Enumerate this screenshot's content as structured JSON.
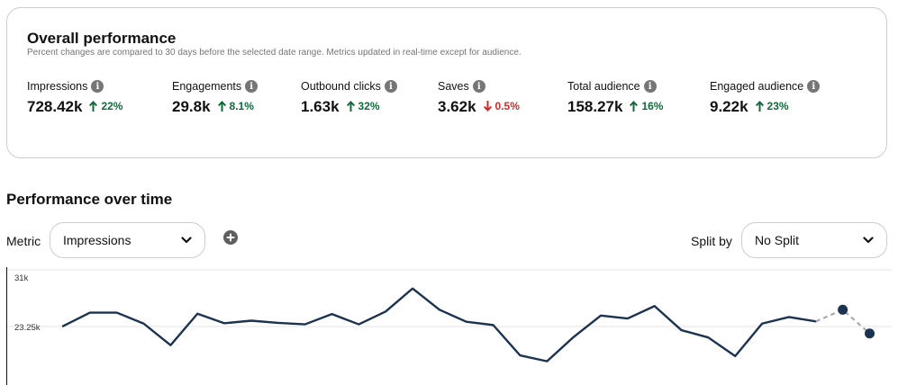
{
  "overall": {
    "title": "Overall performance",
    "subtitle": "Percent changes are compared to 30 days before the selected date range. Metrics updated in real-time except for audience.",
    "metrics": [
      {
        "label": "Impressions",
        "value": "728.42k",
        "change": "22%",
        "direction": "up"
      },
      {
        "label": "Engagements",
        "value": "29.8k",
        "change": "8.1%",
        "direction": "up"
      },
      {
        "label": "Outbound clicks",
        "value": "1.63k",
        "change": "32%",
        "direction": "up"
      },
      {
        "label": "Saves",
        "value": "3.62k",
        "change": "0.5%",
        "direction": "down"
      },
      {
        "label": "Total audience",
        "value": "158.27k",
        "change": "16%",
        "direction": "up"
      },
      {
        "label": "Engaged audience",
        "value": "9.22k",
        "change": "23%",
        "direction": "up"
      }
    ]
  },
  "over_time": {
    "title": "Performance over time",
    "metric_label": "Metric",
    "metric_value": "Impressions",
    "split_label": "Split by",
    "split_value": "No Split"
  },
  "colors": {
    "up": "#0f6b3a",
    "down": "#cc2b2b",
    "line": "#1b3250",
    "projection": "#a5abb5",
    "grid": "#e6e6e6"
  },
  "icons": {
    "info": "info-icon",
    "up": "arrow-up-icon",
    "down": "arrow-down-icon",
    "dropdown": "chevron-down-icon",
    "add": "plus-circle-icon"
  },
  "chart_data": {
    "type": "line",
    "y_tick_labels": [
      "31k",
      "23.25k"
    ],
    "y_ticks": [
      31000,
      23250
    ],
    "ylim": [
      15500,
      31000
    ],
    "grid": true,
    "series": [
      {
        "values": [
          23300,
          25150,
          25150,
          23650,
          20700,
          25000,
          23700,
          24050,
          23750,
          23550,
          24950,
          23550,
          25300,
          28450,
          25550,
          23900,
          23450,
          19300,
          18500,
          21850,
          24750,
          24350,
          26050,
          22750,
          21750,
          19200,
          23650,
          24550,
          23950
        ]
      },
      {
        "style": "projection",
        "values": [
          null,
          null,
          null,
          null,
          null,
          null,
          null,
          null,
          null,
          null,
          null,
          null,
          null,
          null,
          null,
          null,
          null,
          null,
          null,
          null,
          null,
          null,
          null,
          null,
          null,
          null,
          null,
          null,
          23950,
          25550,
          22300
        ]
      }
    ]
  }
}
